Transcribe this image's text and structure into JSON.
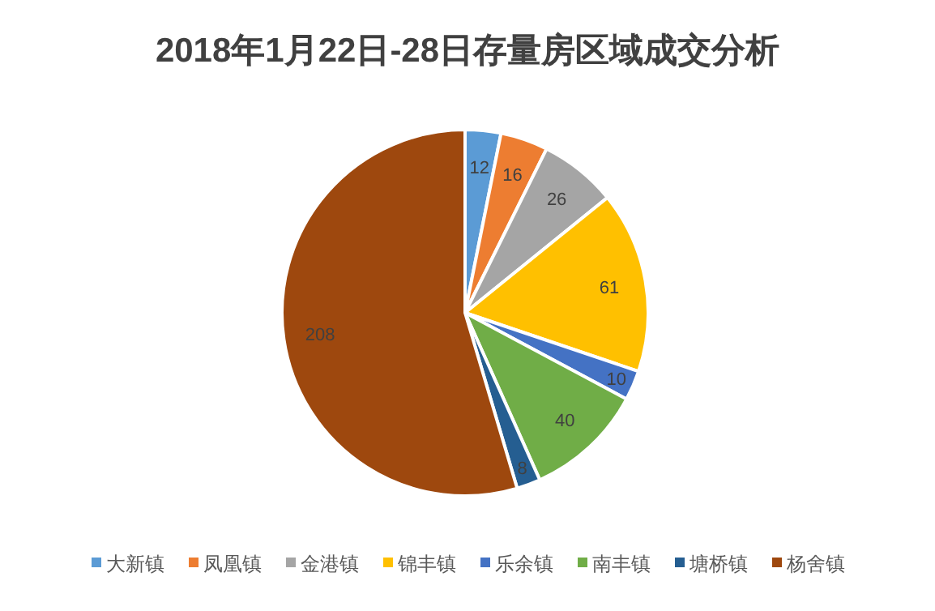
{
  "chart_data": {
    "type": "pie",
    "title": "2018年1月22日-28日存量房区域成交分析",
    "categories": [
      "大新镇",
      "凤凰镇",
      "金港镇",
      "锦丰镇",
      "乐余镇",
      "南丰镇",
      "塘桥镇",
      "杨舍镇"
    ],
    "values": [
      12,
      16,
      26,
      61,
      10,
      40,
      8,
      208
    ],
    "colors": [
      "#5b9bd5",
      "#ed7d31",
      "#a5a5a5",
      "#ffc000",
      "#4472c4",
      "#70ad47",
      "#255e91",
      "#9e480e"
    ],
    "data_labels": true,
    "legend": "bottom"
  }
}
